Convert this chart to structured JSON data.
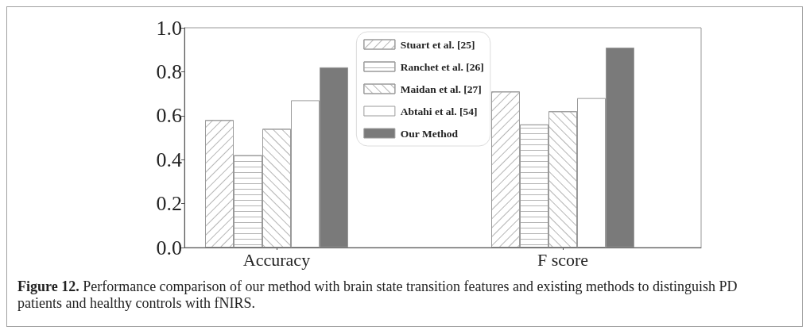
{
  "chart_data": {
    "type": "bar",
    "categories": [
      "Accuracy",
      "F score"
    ],
    "series": [
      {
        "name": "Stuart et al. [25]",
        "color": "#ffffff",
        "values": [
          0.58,
          0.71
        ]
      },
      {
        "name": "Ranchet et al. [26]",
        "color": "#ffffff",
        "values": [
          0.42,
          0.56
        ]
      },
      {
        "name": "Maidan et al. [27]",
        "color": "#ffffff",
        "values": [
          0.54,
          0.62
        ]
      },
      {
        "name": "Abtahi et al. [54]",
        "color": "#ffffff",
        "values": [
          0.67,
          0.68
        ]
      },
      {
        "name": "Our Method",
        "color": "#7a7a7a",
        "values": [
          0.82,
          0.91
        ]
      }
    ],
    "ylim": [
      0,
      1
    ],
    "yticks": [
      {
        "value": 0,
        "label": "0.0"
      },
      {
        "value": 0.2,
        "label": "0.2"
      },
      {
        "value": 0.4,
        "label": "0.4"
      },
      {
        "value": 0.6,
        "label": "0.6"
      },
      {
        "value": 0.8,
        "label": "0.8"
      },
      {
        "value": 1,
        "label": "1.0"
      }
    ],
    "grid": false,
    "legend": "top",
    "annotations": [
      "Figure 12.",
      "Performance comparison of our method with brain state transition features and existing methods to distinguish PD",
      "patients and healthy controls with fNIRS."
    ]
  }
}
